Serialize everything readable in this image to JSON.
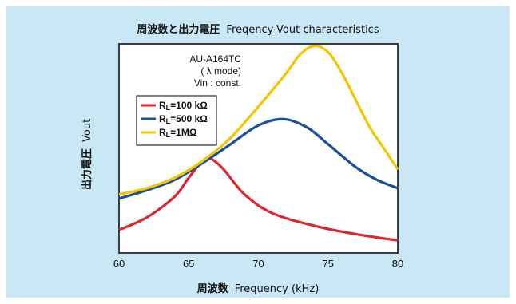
{
  "chart_data": {
    "type": "line",
    "title": {
      "jp": "周波数と出力電圧",
      "en": "Freqency-Vout characteristics"
    },
    "xlabel": {
      "jp": "周波数",
      "en": "Frequency (kHz)"
    },
    "ylabel": {
      "jp": "出力電圧",
      "en": "Vout"
    },
    "xlim": [
      60,
      80
    ],
    "x_ticks": [
      "60",
      "65",
      "70",
      "75",
      "80"
    ],
    "y_ticks_shown": false,
    "grid": false,
    "legend_placement": "top-left",
    "annotations": [
      "AU-A164TC",
      "( λ mode)",
      "Vin : const."
    ],
    "y_scale": "relative (no values shown)",
    "series": [
      {
        "name": "RL=100 kΩ",
        "legend_sub": "L",
        "color": "#e0242b",
        "x": [
          60,
          62,
          64,
          65,
          66,
          66.6,
          67.5,
          69,
          71,
          74,
          77,
          80
        ],
        "y": [
          0.11,
          0.17,
          0.27,
          0.36,
          0.44,
          0.45,
          0.4,
          0.28,
          0.19,
          0.13,
          0.09,
          0.06
        ]
      },
      {
        "name": "RL=500 kΩ",
        "legend_sub": "L",
        "color": "#1a4f9e",
        "x": [
          60,
          62,
          64,
          66,
          68,
          70,
          71.8,
          73.5,
          75,
          77,
          78.5,
          80
        ],
        "y": [
          0.26,
          0.3,
          0.35,
          0.43,
          0.52,
          0.61,
          0.64,
          0.6,
          0.52,
          0.41,
          0.35,
          0.31
        ]
      },
      {
        "name": "RL=1MΩ",
        "legend_sub": "L",
        "color": "#f4c500",
        "x": [
          60,
          62,
          64,
          66,
          68,
          70,
          72,
          73,
          74,
          75,
          76,
          77,
          78,
          79,
          80
        ],
        "y": [
          0.28,
          0.31,
          0.36,
          0.44,
          0.55,
          0.7,
          0.86,
          0.95,
          0.99,
          0.96,
          0.86,
          0.73,
          0.6,
          0.5,
          0.4
        ]
      }
    ]
  }
}
